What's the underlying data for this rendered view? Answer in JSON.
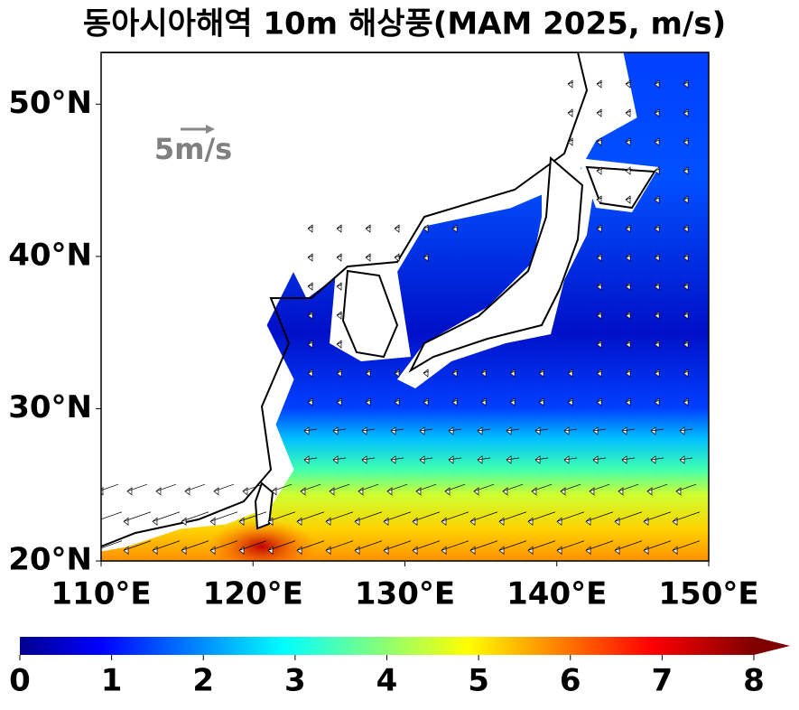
{
  "title": "동아시아해역 10m 해상풍(MAM 2025, m/s)",
  "map": {
    "xlim": [
      110,
      150
    ],
    "ylim": [
      20,
      53.4
    ],
    "xticks": [
      {
        "value": 110,
        "label": "110°E"
      },
      {
        "value": 120,
        "label": "120°E"
      },
      {
        "value": 130,
        "label": "130°E"
      },
      {
        "value": 140,
        "label": "140°E"
      },
      {
        "value": 150,
        "label": "150°E"
      }
    ],
    "yticks": [
      {
        "value": 20,
        "label": "20°N"
      },
      {
        "value": 30,
        "label": "30°N"
      },
      {
        "value": 40,
        "label": "40°N"
      },
      {
        "value": 50,
        "label": "50°N"
      }
    ]
  },
  "reference_vector": {
    "label": "5m/s"
  },
  "colorbar": {
    "lim": [
      0,
      8
    ],
    "ticks": [
      0,
      1,
      2,
      3,
      4,
      5,
      6,
      7,
      8
    ]
  }
}
